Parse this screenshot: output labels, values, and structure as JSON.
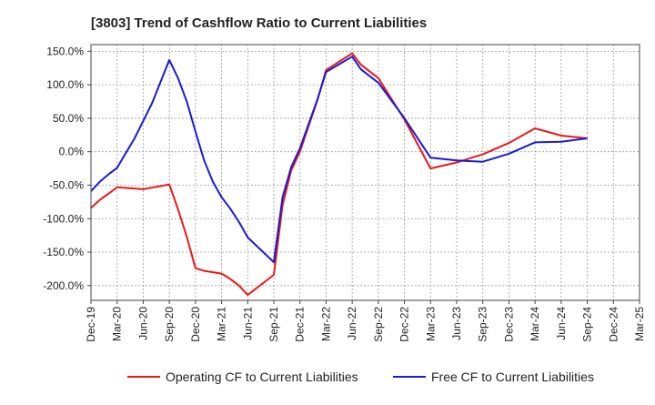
{
  "chart_data": {
    "type": "line",
    "title": "[3803]  Trend of Cashflow Ratio to Current Liabilities",
    "xlabel": "",
    "ylabel": "",
    "x_ticks": [
      "Dec-19",
      "Mar-20",
      "Jun-20",
      "Sep-20",
      "Dec-20",
      "Mar-21",
      "Jun-21",
      "Sep-21",
      "Dec-21",
      "Mar-22",
      "Jun-22",
      "Sep-22",
      "Dec-22",
      "Mar-23",
      "Jun-23",
      "Sep-23",
      "Dec-23",
      "Mar-24",
      "Jun-24",
      "Sep-24",
      "Dec-24",
      "Mar-25"
    ],
    "y_ticks": [
      150,
      100,
      50,
      0,
      -50,
      -100,
      -150,
      -200
    ],
    "y_tick_labels": [
      "150.0%",
      "100.0%",
      "50.0%",
      "0.0%",
      "-50.0%",
      "-100.0%",
      "-150.0%",
      "-200.0%"
    ],
    "ylim": [
      -222,
      160
    ],
    "grid": true,
    "legend_position": "bottom",
    "series": [
      {
        "name": "Operating CF to Current Liabilities",
        "color": "#e8191a",
        "points": [
          [
            "Dec-19",
            -84
          ],
          [
            "Jan-20",
            -72
          ],
          [
            "Feb-20",
            -63
          ],
          [
            "Mar-20",
            -53
          ],
          [
            "Jun-20",
            -56
          ],
          [
            "Sep-20",
            -49
          ],
          [
            "Oct-20",
            -86
          ],
          [
            "Nov-20",
            -127
          ],
          [
            "Dec-20",
            -174
          ],
          [
            "Jan-21",
            -178
          ],
          [
            "Mar-21",
            -182
          ],
          [
            "Apr-21",
            -190
          ],
          [
            "May-21",
            -200
          ],
          [
            "Jun-21",
            -214
          ],
          [
            "Sep-21",
            -184
          ],
          [
            "Oct-21",
            -80
          ],
          [
            "Nov-21",
            -28
          ],
          [
            "Dec-21",
            0
          ],
          [
            "Feb-22",
            77
          ],
          [
            "Mar-22",
            122
          ],
          [
            "Jun-22",
            147
          ],
          [
            "Jul-22",
            130
          ],
          [
            "Sep-22",
            110
          ],
          [
            "Dec-22",
            48
          ],
          [
            "Mar-23",
            -25
          ],
          [
            "Jun-23",
            -16
          ],
          [
            "Sep-23",
            -4
          ],
          [
            "Dec-23",
            13
          ],
          [
            "Mar-24",
            35
          ],
          [
            "Jun-24",
            24
          ],
          [
            "Sep-24",
            20
          ]
        ]
      },
      {
        "name": "Free CF to Current Liabilities",
        "color": "#1a1ad6",
        "points": [
          [
            "Dec-19",
            -59
          ],
          [
            "Jan-20",
            -45
          ],
          [
            "Feb-20",
            -34
          ],
          [
            "Mar-20",
            -24
          ],
          [
            "May-20",
            20
          ],
          [
            "Jul-20",
            72
          ],
          [
            "Sep-20",
            137
          ],
          [
            "Oct-20",
            110
          ],
          [
            "Nov-20",
            75
          ],
          [
            "Dec-20",
            30
          ],
          [
            "Jan-21",
            -13
          ],
          [
            "Feb-21",
            -45
          ],
          [
            "Mar-21",
            -68
          ],
          [
            "Apr-21",
            -85
          ],
          [
            "May-21",
            -105
          ],
          [
            "Jun-21",
            -128
          ],
          [
            "Sep-21",
            -165
          ],
          [
            "Oct-21",
            -68
          ],
          [
            "Nov-21",
            -23
          ],
          [
            "Dec-21",
            5
          ],
          [
            "Feb-22",
            78
          ],
          [
            "Mar-22",
            119
          ],
          [
            "Jun-22",
            142
          ],
          [
            "Jul-22",
            123
          ],
          [
            "Sep-22",
            103
          ],
          [
            "Dec-22",
            50
          ],
          [
            "Mar-23",
            -9
          ],
          [
            "Jun-23",
            -13
          ],
          [
            "Sep-23",
            -15
          ],
          [
            "Dec-23",
            -3
          ],
          [
            "Mar-24",
            14
          ],
          [
            "Jun-24",
            15
          ],
          [
            "Sep-24",
            20
          ]
        ]
      }
    ]
  }
}
